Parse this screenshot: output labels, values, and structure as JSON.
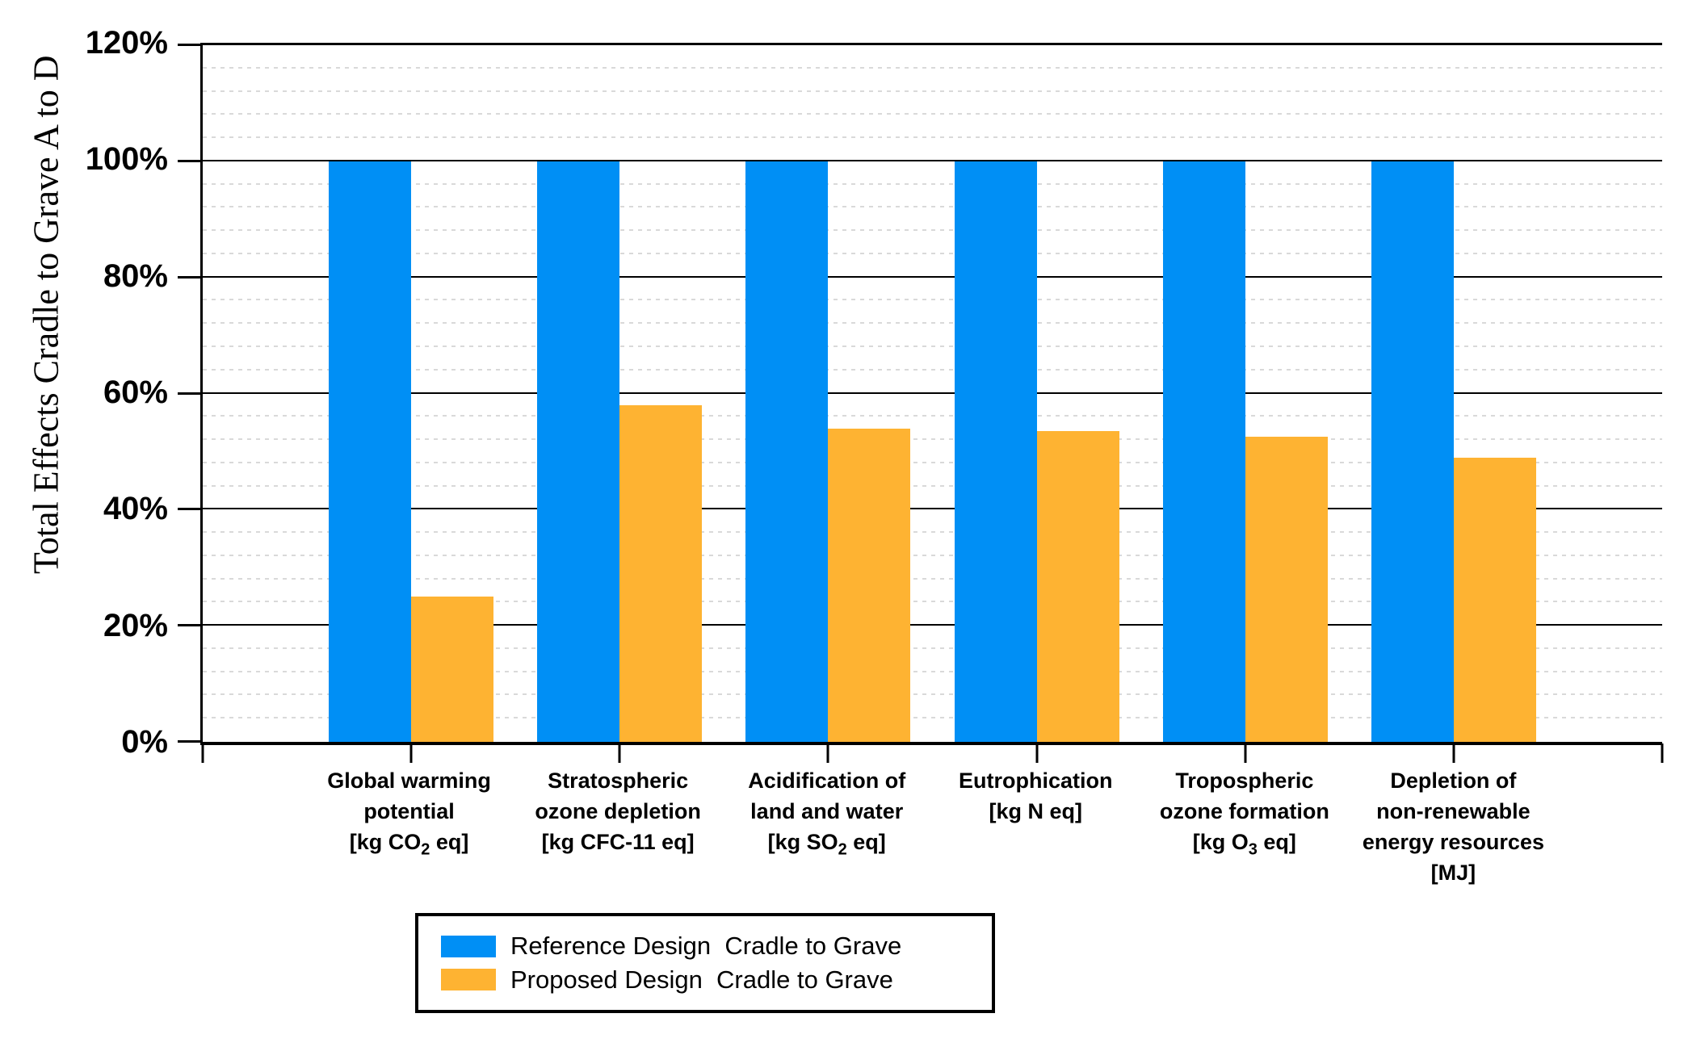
{
  "chart_data": {
    "type": "bar",
    "title": "",
    "ylabel": "Total Effects Cradle to Grave A to D",
    "xlabel": "",
    "ylim": [
      0,
      120
    ],
    "y_major_step": 20,
    "y_minor_step": 4,
    "y_tick_labels": [
      "0%",
      "20%",
      "40%",
      "60%",
      "80%",
      "100%",
      "120%"
    ],
    "grid": "major horizontal solid black, minor horizontal dotted light gray",
    "legend_position": "bottom",
    "categories": [
      {
        "lines": [
          "Global warming",
          "potential",
          "[kg CO_2 eq]"
        ]
      },
      {
        "lines": [
          "Stratospheric",
          "ozone depletion",
          "[kg CFC-11 eq]"
        ]
      },
      {
        "lines": [
          "Acidification of",
          "land and water",
          "[kg SO_2 eq]"
        ]
      },
      {
        "lines": [
          "Eutrophication",
          "[kg N eq]"
        ]
      },
      {
        "lines": [
          "Tropospheric",
          "ozone formation",
          "[kg O_3 eq]"
        ]
      },
      {
        "lines": [
          "Depletion of",
          "non-renewable",
          "energy resources",
          "[MJ]"
        ]
      }
    ],
    "series": [
      {
        "name": "Reference Design  Cradle to Grave",
        "color": "#008FF5",
        "values": [
          100,
          100,
          100,
          100,
          100,
          100
        ]
      },
      {
        "name": "Proposed Design  Cradle to Grave",
        "color": "#FEB332",
        "values": [
          25,
          58,
          54,
          53.5,
          52.5,
          49
        ]
      }
    ]
  }
}
